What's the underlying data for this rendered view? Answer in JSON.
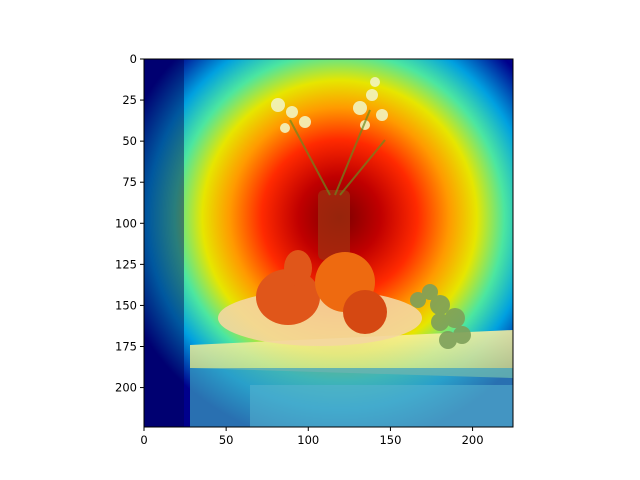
{
  "figure": {
    "image_width": 224,
    "image_height": 224,
    "y_ticks": [
      "0",
      "25",
      "50",
      "75",
      "100",
      "125",
      "150",
      "175",
      "200"
    ],
    "y_tick_values": [
      0,
      25,
      50,
      75,
      100,
      125,
      150,
      175,
      200
    ],
    "x_ticks": [
      "0",
      "50",
      "100",
      "150",
      "200"
    ],
    "x_tick_values": [
      0,
      50,
      100,
      150,
      200
    ]
  },
  "scene": {
    "colormap": "jet",
    "frame_color": "#000000",
    "subjects": [
      "flower-vase",
      "pears",
      "oranges",
      "grapes",
      "plate",
      "table"
    ]
  }
}
